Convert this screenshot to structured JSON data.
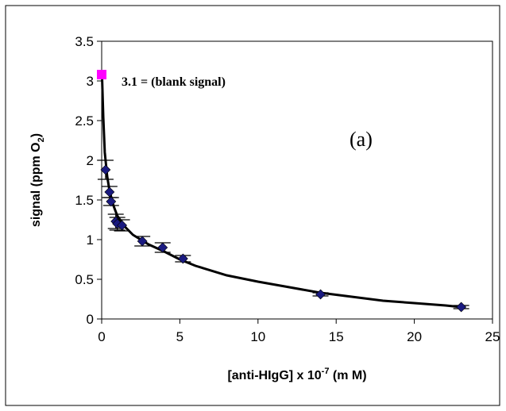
{
  "chart_data": {
    "type": "scatter",
    "title": "",
    "xlabel": "[anti-HIgG] x 10-7 (mM)",
    "xlabel_parts": {
      "main": "[anti-HIgG] x 10",
      "sup": "-7",
      "unit": " (m M)"
    },
    "ylabel": "signal (ppm O2)",
    "ylabel_parts": {
      "main": "signal (ppm O",
      "sub": "2",
      "end": ")"
    },
    "xlim": [
      0,
      25
    ],
    "ylim": [
      0,
      3.5
    ],
    "x_ticks": [
      0,
      5,
      10,
      15,
      20,
      25
    ],
    "y_ticks": [
      0,
      0.5,
      1,
      1.5,
      2,
      2.5,
      3,
      3.5
    ],
    "x_tick_labels": [
      "0",
      "5",
      "10",
      "15",
      "20",
      "25"
    ],
    "y_tick_labels": [
      "0",
      "0.5",
      "1",
      "1.5",
      "2",
      "2.5",
      "3",
      "3.5"
    ],
    "grid": false,
    "series": [
      {
        "marker": "diamond",
        "color": "#1a1a80",
        "points": [
          {
            "x": 0.25,
            "y": 1.88,
            "err": 0.12
          },
          {
            "x": 0.5,
            "y": 1.6,
            "err": 0.07
          },
          {
            "x": 0.6,
            "y": 1.48,
            "err": 0.05
          },
          {
            "x": 0.9,
            "y": 1.23,
            "err": 0.09
          },
          {
            "x": 1.0,
            "y": 1.2,
            "err": 0.08
          },
          {
            "x": 1.3,
            "y": 1.18,
            "err": 0.07
          },
          {
            "x": 2.6,
            "y": 0.98,
            "err": 0.06
          },
          {
            "x": 3.9,
            "y": 0.9,
            "err": 0.06
          },
          {
            "x": 5.2,
            "y": 0.76,
            "err": 0.04
          },
          {
            "x": 14.0,
            "y": 0.31,
            "err": 0.02
          },
          {
            "x": 23.0,
            "y": 0.15,
            "err": 0.02
          }
        ]
      },
      {
        "marker": "square",
        "color": "#ff00ff",
        "points": [
          {
            "x": 0.0,
            "y": 3.08
          }
        ]
      }
    ],
    "fit_curve": [
      {
        "x": 0.02,
        "y": 3.08
      },
      {
        "x": 0.1,
        "y": 2.55
      },
      {
        "x": 0.2,
        "y": 2.1
      },
      {
        "x": 0.35,
        "y": 1.8
      },
      {
        "x": 0.5,
        "y": 1.62
      },
      {
        "x": 0.75,
        "y": 1.43
      },
      {
        "x": 1.0,
        "y": 1.3
      },
      {
        "x": 1.5,
        "y": 1.16
      },
      {
        "x": 2.0,
        "y": 1.06
      },
      {
        "x": 3.0,
        "y": 0.94
      },
      {
        "x": 4.0,
        "y": 0.85
      },
      {
        "x": 5.0,
        "y": 0.75
      },
      {
        "x": 6.0,
        "y": 0.67
      },
      {
        "x": 8.0,
        "y": 0.55
      },
      {
        "x": 10.0,
        "y": 0.47
      },
      {
        "x": 12.0,
        "y": 0.4
      },
      {
        "x": 14.0,
        "y": 0.33
      },
      {
        "x": 16.0,
        "y": 0.28
      },
      {
        "x": 18.0,
        "y": 0.23
      },
      {
        "x": 20.0,
        "y": 0.2
      },
      {
        "x": 22.0,
        "y": 0.17
      },
      {
        "x": 23.0,
        "y": 0.15
      }
    ],
    "annotations": {
      "blank": "3.1 = (blank signal)",
      "panel": "(a)"
    },
    "legend": "none"
  }
}
